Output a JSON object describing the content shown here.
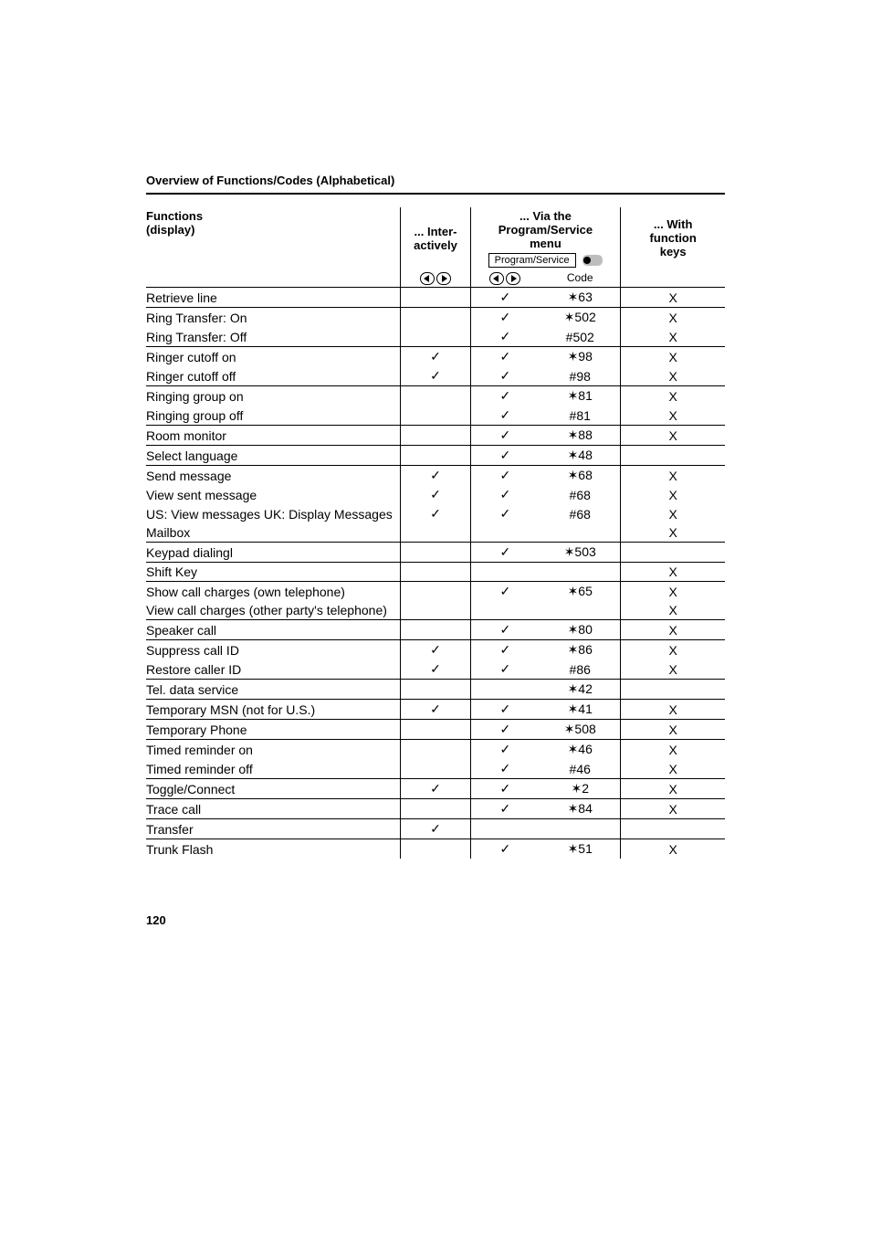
{
  "header_title": "Overview of Functions/Codes (Alphabetical)",
  "page_number": "120",
  "columns": {
    "functions": "Functions\n(display)",
    "interactively": "... Inter-\nactively",
    "via_menu": "... Via the\nProgram/Service\nmenu",
    "with_keys": "... With\nfunction\nkeys",
    "ps_box": "Program/Service",
    "code": "Code"
  },
  "marks": {
    "check": "✓",
    "x": "X"
  },
  "rows": [
    {
      "sep": true,
      "fn": "Retrieve line",
      "int": false,
      "via": true,
      "code": "✶63",
      "key": true
    },
    {
      "sep": true,
      "fn": "Ring Transfer: On",
      "int": false,
      "via": true,
      "code": "✶502",
      "key": true
    },
    {
      "sep": false,
      "fn": "Ring Transfer: Off",
      "int": false,
      "via": true,
      "code": "#502",
      "key": true
    },
    {
      "sep": true,
      "fn": "Ringer cutoff on",
      "int": true,
      "via": true,
      "code": "✶98",
      "key": true
    },
    {
      "sep": false,
      "fn": "Ringer cutoff off",
      "int": true,
      "via": true,
      "code": "#98",
      "key": true
    },
    {
      "sep": true,
      "fn": "Ringing group on",
      "int": false,
      "via": true,
      "code": "✶81",
      "key": true
    },
    {
      "sep": false,
      "fn": "Ringing group off",
      "int": false,
      "via": true,
      "code": "#81",
      "key": true
    },
    {
      "sep": true,
      "fn": "Room monitor",
      "int": false,
      "via": true,
      "code": "✶88",
      "key": true
    },
    {
      "sep": true,
      "fn": "Select language",
      "int": false,
      "via": true,
      "code": "✶48",
      "key": false
    },
    {
      "sep": true,
      "fn": "Send message",
      "int": true,
      "via": true,
      "code": "✶68",
      "key": true
    },
    {
      "sep": false,
      "fn": "View sent message",
      "int": true,
      "via": true,
      "code": "#68",
      "key": true
    },
    {
      "sep": false,
      "fn": "US: View messages UK: Display Messages",
      "int": true,
      "via": true,
      "code": "#68",
      "key": true
    },
    {
      "sep": false,
      "fn": "Mailbox",
      "int": false,
      "via": false,
      "code": "",
      "key": true
    },
    {
      "sep": true,
      "fn": "Keypad dialingl",
      "int": false,
      "via": true,
      "code": "✶503",
      "key": false
    },
    {
      "sep": true,
      "fn": "Shift Key",
      "int": false,
      "via": false,
      "code": "",
      "key": true
    },
    {
      "sep": true,
      "fn": "Show call charges (own telephone)",
      "int": false,
      "via": true,
      "code": "✶65",
      "key": true
    },
    {
      "sep": false,
      "fn": "View call charges (other party's telephone)",
      "int": false,
      "via": false,
      "code": "",
      "key": true
    },
    {
      "sep": true,
      "fn": "Speaker call",
      "int": false,
      "via": true,
      "code": "✶80",
      "key": true
    },
    {
      "sep": true,
      "fn": "Suppress call ID",
      "int": true,
      "via": true,
      "code": "✶86",
      "key": true
    },
    {
      "sep": false,
      "fn": "Restore caller ID",
      "int": true,
      "via": true,
      "code": "#86",
      "key": true
    },
    {
      "sep": true,
      "fn": "Tel. data service",
      "int": false,
      "via": false,
      "code": "✶42",
      "key": false
    },
    {
      "sep": true,
      "fn": "Temporary MSN (not for U.S.)",
      "int": true,
      "via": true,
      "code": "✶41",
      "key": true
    },
    {
      "sep": true,
      "fn": "Temporary Phone",
      "int": false,
      "via": true,
      "code": "✶508",
      "key": true
    },
    {
      "sep": true,
      "fn": "Timed reminder on",
      "int": false,
      "via": true,
      "code": "✶46",
      "key": true
    },
    {
      "sep": false,
      "fn": "Timed reminder off",
      "int": false,
      "via": true,
      "code": "#46",
      "key": true
    },
    {
      "sep": true,
      "fn": "Toggle/Connect",
      "int": true,
      "via": true,
      "code": "✶2",
      "key": true
    },
    {
      "sep": true,
      "fn": "Trace call",
      "int": false,
      "via": true,
      "code": "✶84",
      "key": true
    },
    {
      "sep": true,
      "fn": "Transfer",
      "int": true,
      "via": false,
      "code": "",
      "key": false
    },
    {
      "sep": true,
      "fn": "Trunk Flash",
      "int": false,
      "via": true,
      "code": "✶51",
      "key": true
    }
  ]
}
